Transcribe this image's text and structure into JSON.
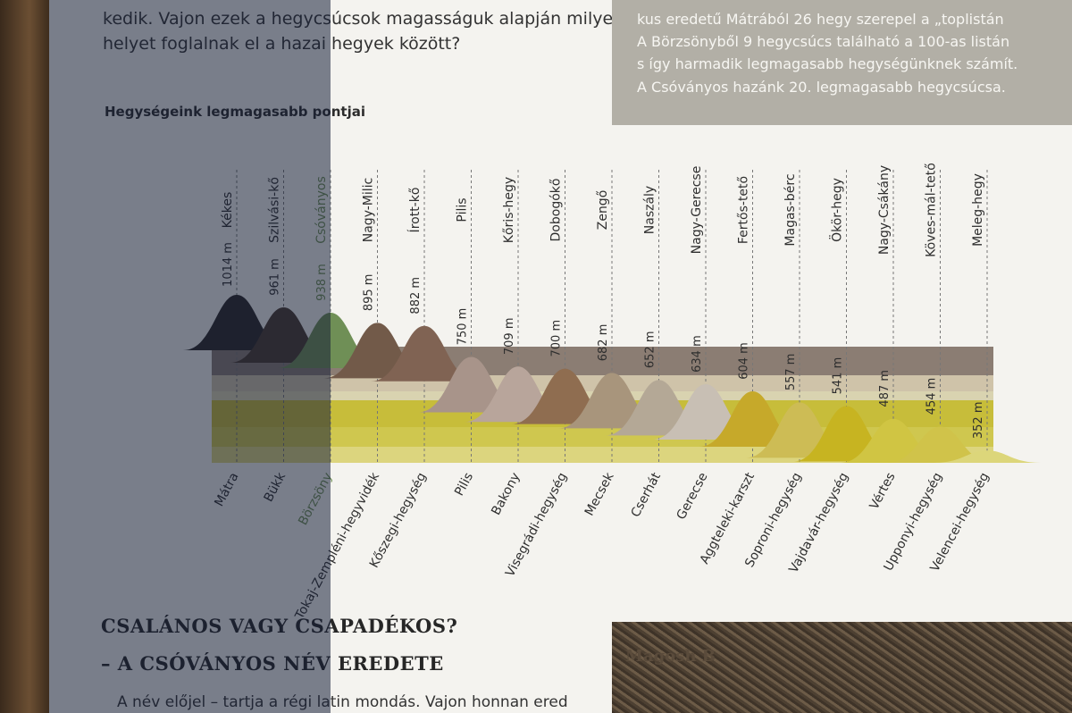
{
  "intro": {
    "line1": "kedik. Vajon ezek a hegycsúcsok magasságuk alapján milyen",
    "line2": "helyet foglalnak el a hazai hegyek között?"
  },
  "sidebar_box": {
    "line1": "kus eredetű Mátrából 26 hegy szerepel a „toplistán",
    "line2": "A Börzsönyből 9 hegycsúcs található a 100-as listán",
    "line3": "s így harmadik legmagasabb hegységünknek számít.",
    "line4": "A Csóványos hazánk 20. legmagasabb hegycsúcsa."
  },
  "chart_data": {
    "type": "area",
    "title": "Hegységeink legmagasabb pontjai",
    "ranges": [
      "Mátra",
      "Bükk",
      "Börzsöny",
      "Tokaj-Zempléni-hegyvidék",
      "Kőszegi-hegység",
      "Pilis",
      "Bakony",
      "Visegrádi-hegység",
      "Mecsek",
      "Cserhát",
      "Gerecse",
      "Aggteleki-karszt",
      "Soproni-hegység",
      "Vajdavár-hegység",
      "Vértes",
      "Upponyi-hegység",
      "Velencei-hegység"
    ],
    "peaks": [
      "Kékes",
      "Szilvási-kő",
      "Csóványos",
      "Nagy-Milic",
      "Írott-kő",
      "Pilis",
      "Kőris-hegy",
      "Dobogókő",
      "Zengő",
      "Naszály",
      "Nagy-Gerecse",
      "Fertős-tető",
      "Magas-bérc",
      "Ökör-hegy",
      "Nagy-Csákány",
      "Köves-mál-tető",
      "Meleg-hegy"
    ],
    "heights": [
      "1014 m",
      "961 m",
      "938 m",
      "895 m",
      "882 m",
      "750 m",
      "709 m",
      "700 m",
      "682 m",
      "652 m",
      "634 m",
      "604 m",
      "557 m",
      "541 m",
      "487 m",
      "454 m",
      "352 m"
    ],
    "values": [
      1014,
      961,
      938,
      895,
      882,
      750,
      709,
      700,
      682,
      652,
      634,
      604,
      557,
      541,
      487,
      454,
      352
    ],
    "unit": "m",
    "highlight_index": 2,
    "colors": {
      "mountains": [
        "#2a2725",
        "#4a3a2e",
        "#6f8f56",
        "#725a49",
        "#806353",
        "#a8948a",
        "#b8a59b",
        "#8f6d50",
        "#a8957c",
        "#b4a896",
        "#c8bfb4",
        "#c6a92a",
        "#cdbc55",
        "#c7b421",
        "#d0c543",
        "#d0c34a",
        "#dcd67a"
      ],
      "highlight": "#6f8f56",
      "text": "#2e2e2e",
      "dash": "#777777"
    }
  },
  "section": {
    "heading1": "CSALÁNOS VAGY CSAPADÉKOS?",
    "heading2": "– A CSÓVÁNYOS NÉV EREDETE",
    "body": "A név előjel – tartja a régi latin mondás. Vajon honnan ered"
  },
  "photo": {
    "label": "Magosh B"
  }
}
